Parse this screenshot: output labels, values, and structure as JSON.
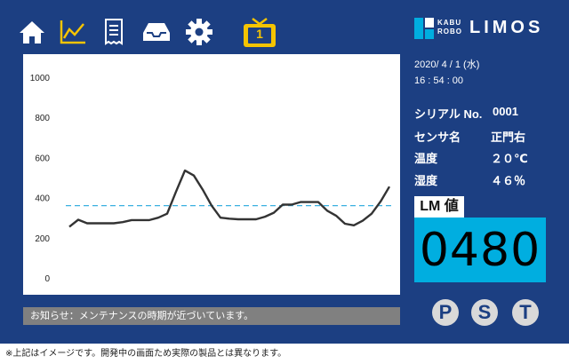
{
  "toolbar": {
    "icons": [
      "home-icon",
      "line-chart-icon",
      "receipt-icon",
      "inbox-icon",
      "gear-icon",
      "tv-icon"
    ],
    "tv_badge": "1",
    "active_color": "#f5c400",
    "icon_color": "#ffffff"
  },
  "brand": {
    "small_top": "KABU",
    "small_bottom": "ROBO",
    "name": "LIMOS"
  },
  "datetime": {
    "date": "2020/ 4 / 1 (水)",
    "time": "16 : 54 : 00"
  },
  "device": {
    "serial_label": "シリアル No.",
    "serial_value": "0001",
    "sensor_label": "センサ名",
    "sensor_value": "正門右",
    "temp_label": "温度",
    "temp_value": "２０℃",
    "humidity_label": "湿度",
    "humidity_value": "４６％"
  },
  "lm": {
    "label": "LM 値",
    "value": "0480"
  },
  "notice": "お知らせ：メンテナンスの時期が近づいています。",
  "buttons": {
    "p": "P",
    "s": "S",
    "t": "T"
  },
  "disclaimer": "※上記はイメージです。開発中の画面ため実際の製品とは異なります。",
  "colors": {
    "panel": "#1c3f82",
    "lm_box": "#00aee0",
    "threshold": "#3ab0e0",
    "line": "#333333"
  },
  "chart_data": {
    "type": "line",
    "title": "",
    "xlabel": "",
    "ylabel": "",
    "ylim": [
      0,
      1000
    ],
    "yticks": [
      "0",
      "200",
      "400",
      "600",
      "800",
      "1000"
    ],
    "grid": false,
    "threshold": 360,
    "series": [
      {
        "values": [
          255,
          290,
          272,
          272,
          272,
          272,
          278,
          288,
          288,
          288,
          300,
          320,
          430,
          535,
          510,
          440,
          360,
          300,
          295,
          292,
          292,
          292,
          305,
          325,
          365,
          365,
          378,
          378,
          378,
          335,
          310,
          270,
          262,
          285,
          320,
          380,
          455
        ]
      }
    ]
  }
}
